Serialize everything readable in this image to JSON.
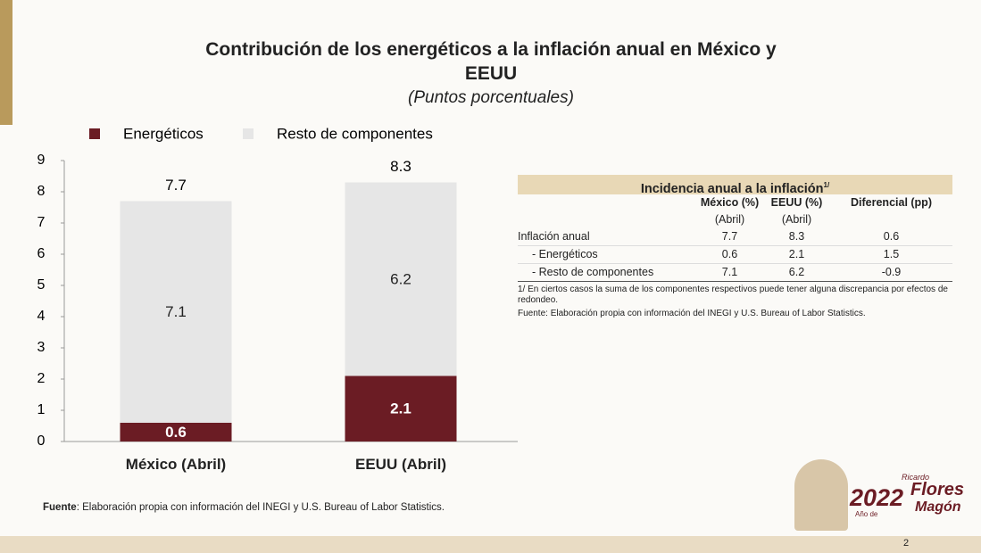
{
  "chart_data": {
    "type": "stacked-bar",
    "title": "Contribución de los energéticos a la inflación anual en México y EEUU",
    "subtitle": "(Puntos porcentuales)",
    "categories": [
      "México (Abril)",
      "EEUU (Abril)"
    ],
    "series": [
      {
        "name": "Energéticos",
        "color": "#6b1c24",
        "values": [
          0.6,
          2.1
        ]
      },
      {
        "name": "Resto de componentes",
        "color": "#e6e6e6",
        "values": [
          7.1,
          6.2
        ]
      }
    ],
    "totals": [
      7.7,
      8.3
    ],
    "ylim": [
      0,
      9
    ],
    "yticks": [
      0,
      1,
      2,
      3,
      4,
      5,
      6,
      7,
      8,
      9
    ],
    "grid": false,
    "legend": "top"
  },
  "table": {
    "title": "Incidencia anual a la inflación",
    "title_note": "1/",
    "header": [
      [
        "",
        ""
      ],
      [
        "México (%)",
        "(Abril)"
      ],
      [
        "EEUU (%)",
        "(Abril)"
      ],
      [
        "Diferencial (pp)",
        ""
      ]
    ],
    "rows": [
      [
        "Inflación anual",
        7.7,
        8.3,
        0.6
      ],
      [
        "- Energéticos",
        0.6,
        2.1,
        1.5
      ],
      [
        "- Resto de componentes",
        7.1,
        6.2,
        -0.9
      ]
    ],
    "notes": [
      "1/ En ciertos casos la suma de los componentes respectivos  puede tener alguna discrepancia por efectos de redondeo.",
      "Fuente: Elaboración propia con información del INEGI y  U.S. Bureau of Labor Statistics."
    ]
  },
  "source": {
    "label": "Fuente",
    "text": ": Elaboración propia con información del INEGI y U.S. Bureau of Labor Statistics."
  },
  "badge": {
    "year": "2022",
    "prefix": "Año de",
    "first": "Ricardo",
    "name": "Flores",
    "last": "Magón"
  },
  "page": "2"
}
